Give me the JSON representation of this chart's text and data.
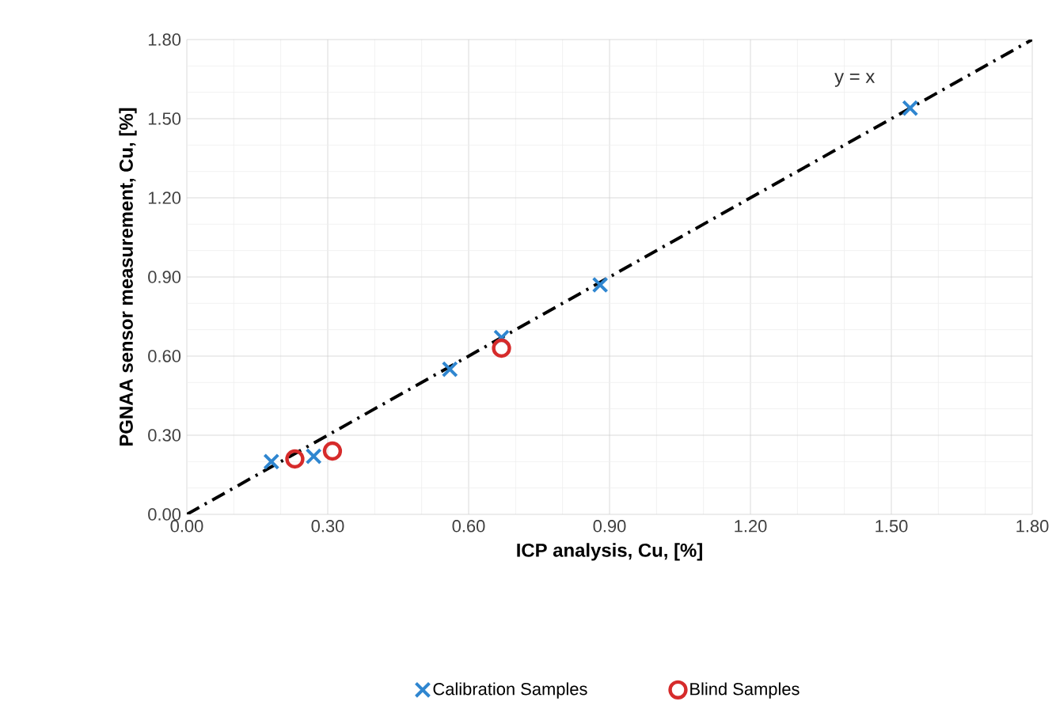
{
  "chart_data": {
    "type": "scatter",
    "xlabel": "ICP analysis, Cu, [%]",
    "ylabel": "PGNAA sensor measurement, Cu, [%]",
    "xlim": [
      0,
      1.8
    ],
    "ylim": [
      0,
      1.8
    ],
    "xticks": [
      {
        "value": 0,
        "label": "0.00"
      },
      {
        "value": 0.3,
        "label": "0.30"
      },
      {
        "value": 0.6,
        "label": "0.60"
      },
      {
        "value": 0.9,
        "label": "0.90"
      },
      {
        "value": 1.2,
        "label": "1.20"
      },
      {
        "value": 1.5,
        "label": "1.50"
      },
      {
        "value": 1.8,
        "label": "1.80"
      }
    ],
    "yticks": [
      {
        "value": 0,
        "label": "0.00"
      },
      {
        "value": 0.3,
        "label": "0.30"
      },
      {
        "value": 0.6,
        "label": "0.60"
      },
      {
        "value": 0.9,
        "label": "0.90"
      },
      {
        "value": 1.2,
        "label": "1.20"
      },
      {
        "value": 1.5,
        "label": "1.50"
      },
      {
        "value": 1.8,
        "label": "1.80"
      }
    ],
    "grid": true,
    "legend": "bottom",
    "series": [
      {
        "name": "Calibration Samples",
        "marker": "cross",
        "color": "#2f86d0",
        "x": [
          0.18,
          0.27,
          0.56,
          0.67,
          0.88,
          1.54
        ],
        "values": [
          0.2,
          0.22,
          0.55,
          0.67,
          0.87,
          1.54
        ]
      },
      {
        "name": "Blind Samples",
        "marker": "circle",
        "color": "#d62b2b",
        "x": [
          0.23,
          0.31,
          0.67
        ],
        "values": [
          0.21,
          0.24,
          0.63
        ]
      },
      {
        "type": "line",
        "line_style": "dashed",
        "color": "#000000",
        "x": [
          0,
          1.8
        ],
        "values": [
          0,
          1.8
        ]
      }
    ],
    "annotations": [
      "y = x"
    ]
  }
}
